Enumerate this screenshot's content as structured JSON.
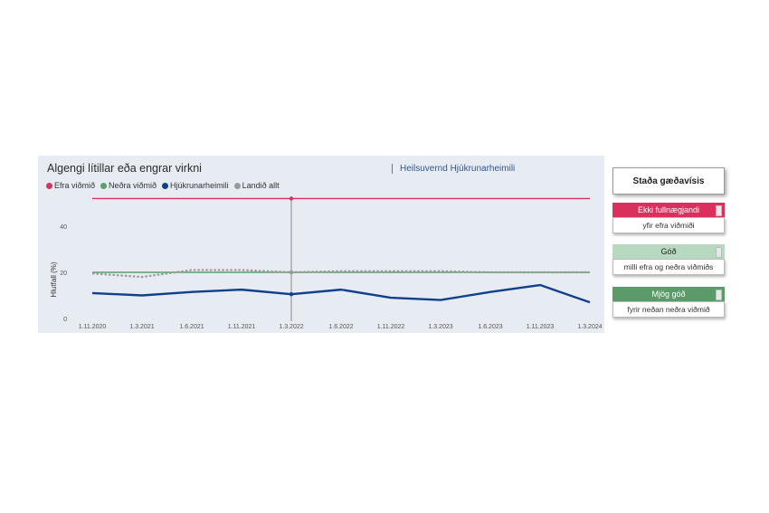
{
  "chart_data": {
    "type": "line",
    "title": "Algengi lítillar eða engrar virkni",
    "subtitle": "Heilsuvernd Hjúkrunarheimili",
    "ylabel": "Hlutfall (%)",
    "ylim": [
      0,
      50
    ],
    "yticks": [
      0,
      20,
      40
    ],
    "categories": [
      "1.11.2020",
      "1.3.2021",
      "1.6.2021",
      "1.11.2021",
      "1.3.2022",
      "1.6.2022",
      "1.11.2022",
      "1.3.2023",
      "1.6.2023",
      "1.11.2023",
      "1.3.2024"
    ],
    "series": [
      {
        "name": "Efra viðmið",
        "color": "#d9305e",
        "style": "solid",
        "values": [
          52,
          52,
          52,
          52,
          52,
          52,
          52,
          52,
          52,
          52,
          52
        ]
      },
      {
        "name": "Neðra viðmið",
        "color": "#5aa06a",
        "style": "solid",
        "values": [
          20,
          20,
          20,
          20,
          20,
          20,
          20,
          20,
          20,
          20,
          20
        ]
      },
      {
        "name": "Hjúkrunarheimili",
        "color": "#123f8c",
        "style": "solid",
        "values": [
          11,
          10,
          11.5,
          12.5,
          10.5,
          12.5,
          9,
          8,
          11.5,
          14.5,
          7
        ]
      },
      {
        "name": "Landið allt",
        "color": "#9a9a9a",
        "style": "dotted",
        "values": [
          19.5,
          18,
          21,
          21,
          20,
          20.5,
          20.5,
          20.5,
          20,
          20,
          20
        ]
      }
    ],
    "cursor_category": "1.3.2022",
    "grid": false,
    "legend": "top-left"
  },
  "status_panel": {
    "title": "Staða gæðavísis",
    "items": [
      {
        "label": "Ekki fullnægjandi",
        "desc": "yfir efra viðmiði",
        "color": "#d9305e",
        "text_color": "#ffffff"
      },
      {
        "label": "Góð",
        "desc": "milli efra og neðra viðmiðs",
        "color": "#b7d9bf",
        "text_color": "#222222"
      },
      {
        "label": "Mjög góð",
        "desc": "fyrir neðan neðra viðmið",
        "color": "#5a9b69",
        "text_color": "#ffffff"
      }
    ]
  }
}
